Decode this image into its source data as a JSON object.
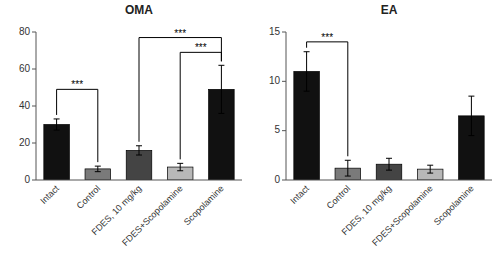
{
  "chart_data": [
    {
      "type": "bar",
      "title": "OMA",
      "categories": [
        "Intact",
        "Control",
        "FDES, 10 mg/kg",
        "FDES+Scopolamine",
        "Scopolamine"
      ],
      "values": [
        30,
        6,
        16,
        7,
        49
      ],
      "errors": [
        3,
        1.5,
        2.5,
        2,
        13
      ],
      "colors": [
        "#111111",
        "#7a7a7a",
        "#444444",
        "#b8b8b8",
        "#111111"
      ],
      "ylim": [
        0,
        80
      ],
      "yticks": [
        0,
        20,
        40,
        60,
        80
      ],
      "annotations": [
        {
          "text": "***",
          "between": [
            "Intact",
            "Control"
          ],
          "y": 49
        },
        {
          "text": "***",
          "between": [
            "FDES, 10 mg/kg",
            "Scopolamine"
          ],
          "y": 77
        },
        {
          "text": "***",
          "between": [
            "FDES+Scopolamine",
            "Scopolamine"
          ],
          "y": 69
        }
      ]
    },
    {
      "type": "bar",
      "title": "EA",
      "categories": [
        "Intact",
        "Control",
        "FDES, 10 mg/kg",
        "FDES+Scopolamine",
        "Scopolamine"
      ],
      "values": [
        11,
        1.2,
        1.6,
        1.1,
        6.5
      ],
      "errors": [
        2,
        0.8,
        0.6,
        0.4,
        2
      ],
      "colors": [
        "#111111",
        "#7a7a7a",
        "#444444",
        "#b8b8b8",
        "#111111"
      ],
      "ylim": [
        0,
        15
      ],
      "yticks": [
        0,
        5,
        10,
        15
      ],
      "annotations": [
        {
          "text": "***",
          "between": [
            "Intact",
            "Control"
          ],
          "y": 14.0
        }
      ]
    }
  ]
}
